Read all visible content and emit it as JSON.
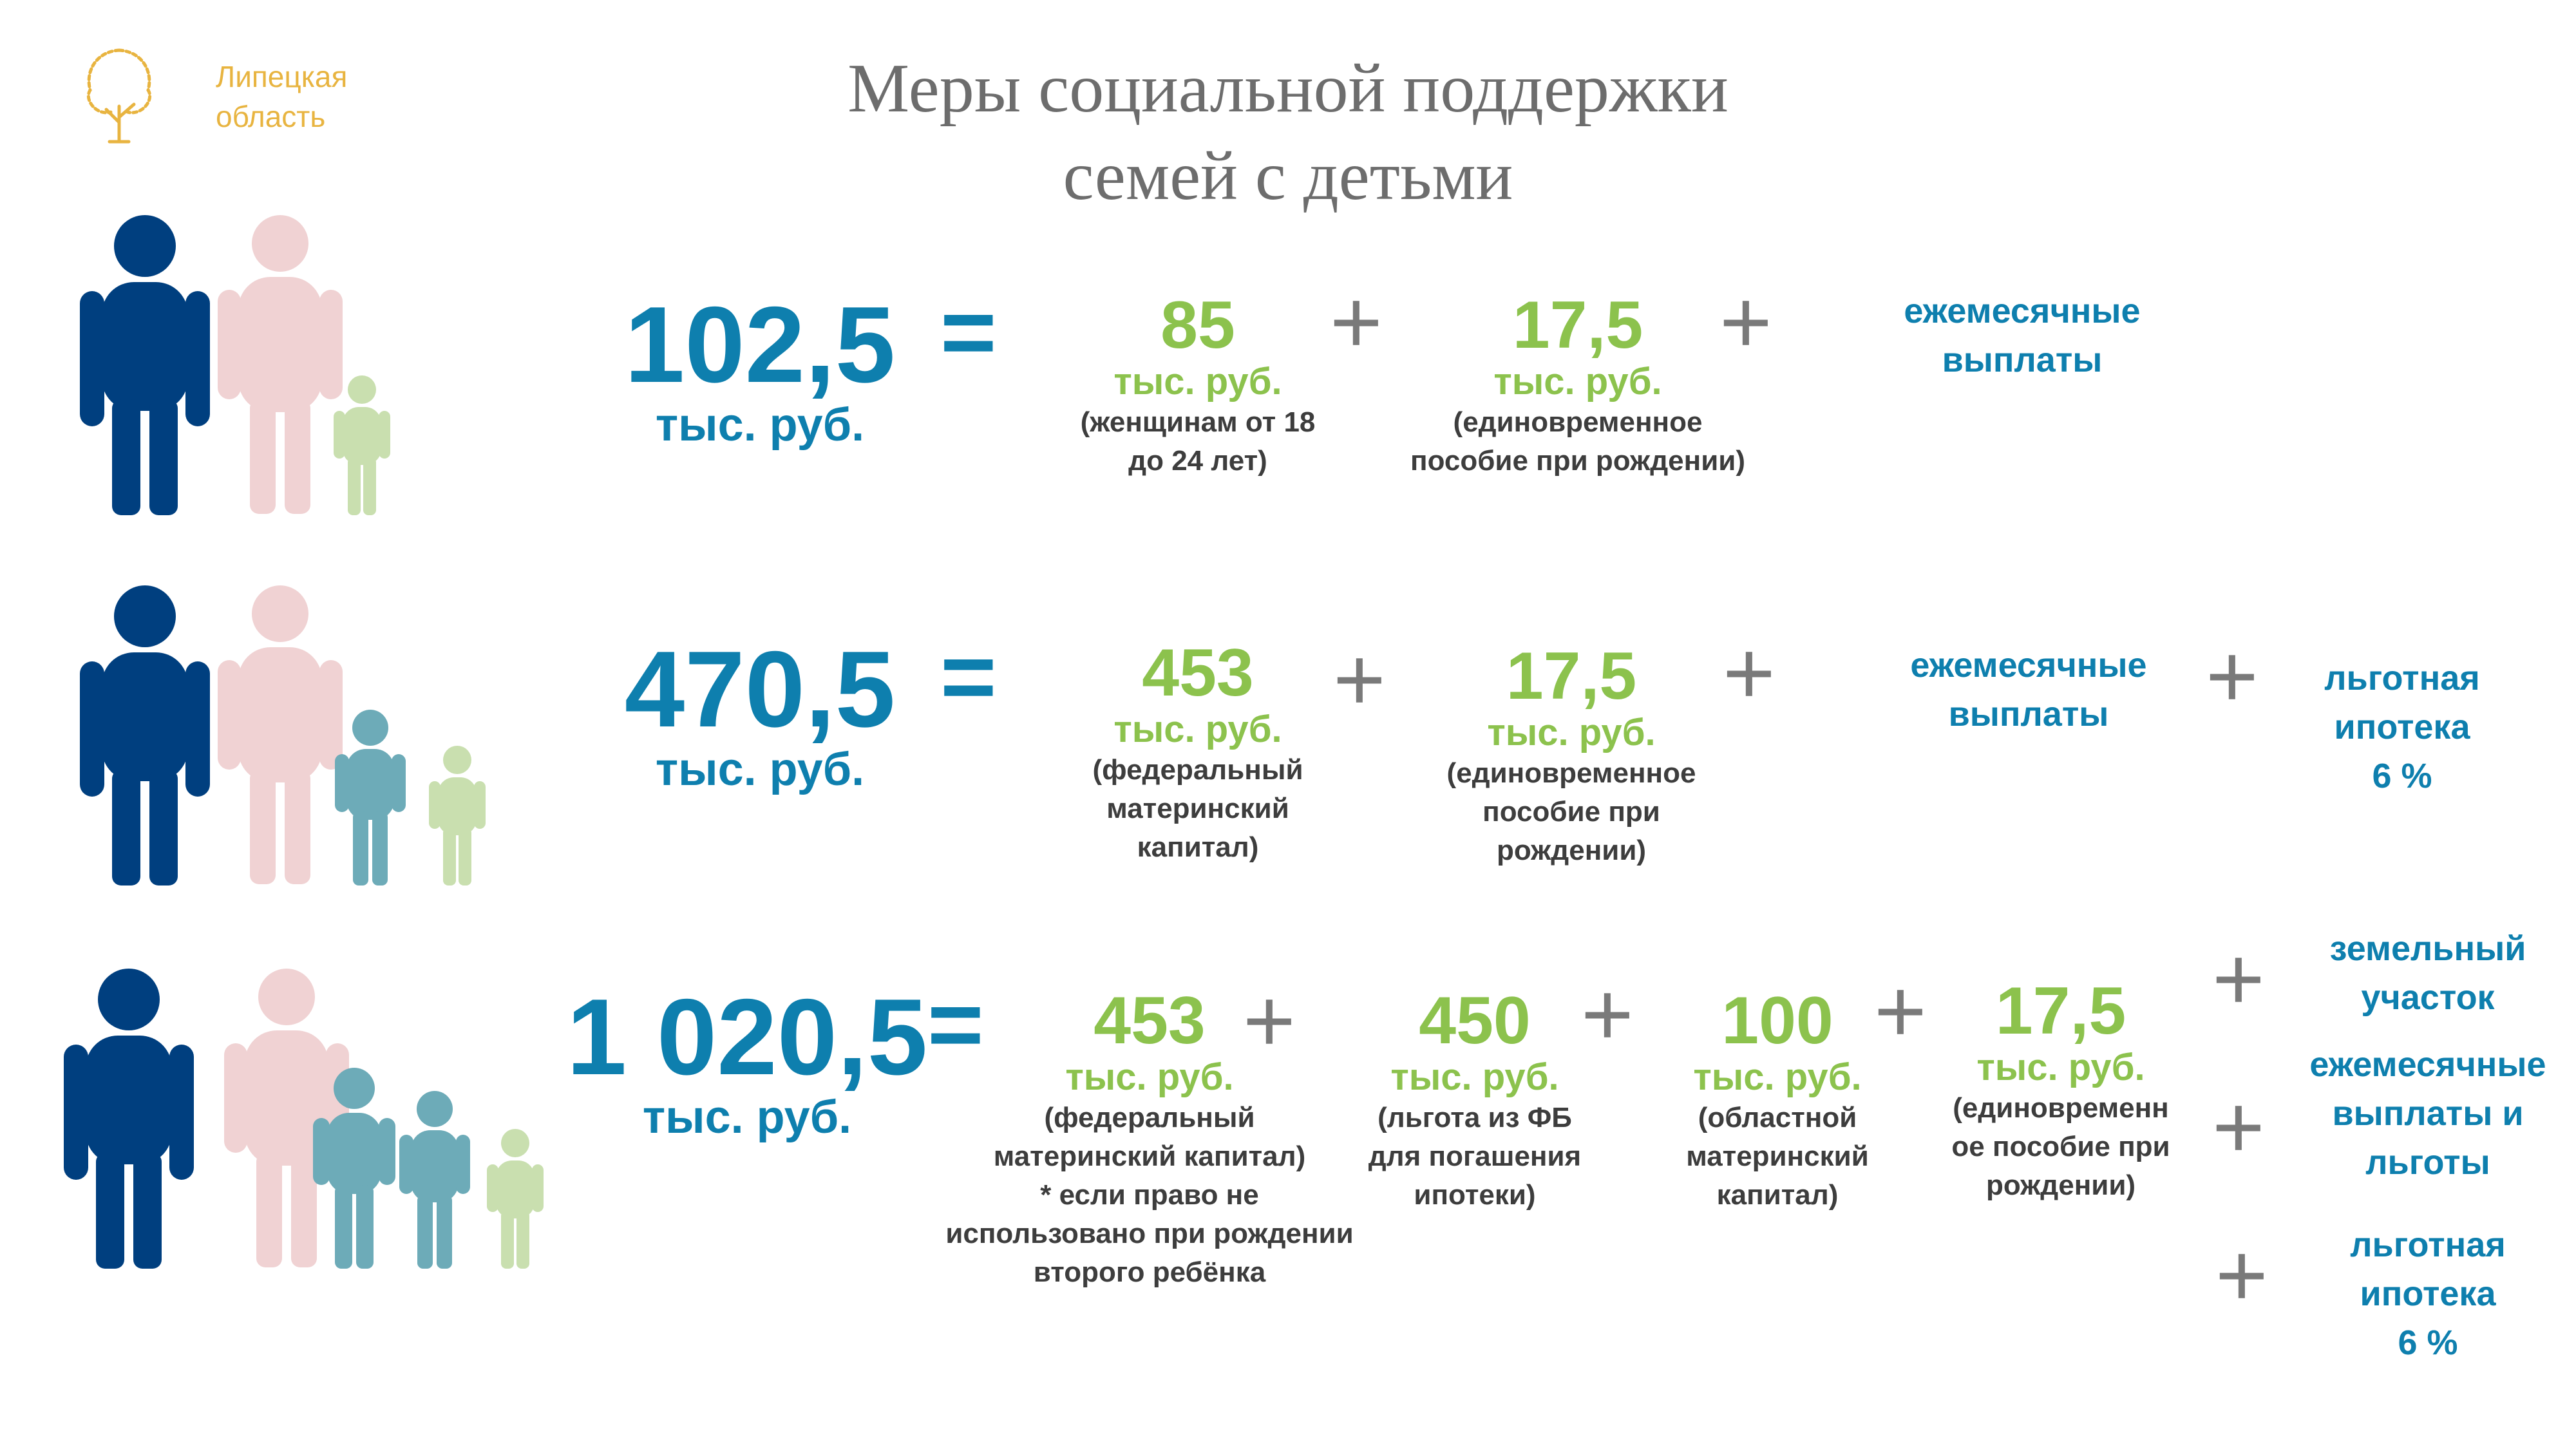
{
  "header": {
    "title_line1": "Меры социальной поддержки",
    "title_line2": "семей с детьми",
    "region_line1": "Липецкая",
    "region_line2": "область"
  },
  "colors": {
    "accent_blue": "#0e7fae",
    "value_green": "#8cc24d",
    "father": "#003f7f",
    "mother": "#f0d2d3",
    "child_teal": "#6dabb8",
    "child_light": "#c9dfaf",
    "logo_gold": "#e8b440"
  },
  "rows": [
    {
      "total": "102,5",
      "total_unit": "тыс. руб.",
      "equals": "=",
      "items": [
        {
          "value": "85",
          "unit": "тыс. руб.",
          "note": "(женщинам от 18\nдо 24 лет)"
        },
        {
          "value": "17,5",
          "unit": "тыс. руб.",
          "note": "(единовременное\nпособие при рождении)"
        }
      ],
      "extras": [
        "ежемесячные\nвыплаты"
      ]
    },
    {
      "total": "470,5",
      "total_unit": "тыс. руб.",
      "equals": "=",
      "items": [
        {
          "value": "453",
          "unit": "тыс. руб.",
          "note": "(федеральный\nматеринский\nкапитал)"
        },
        {
          "value": "17,5",
          "unit": "тыс. руб.",
          "note": "(единовременное\nпособие при\nрождении)"
        }
      ],
      "extras": [
        "ежемесячные\nвыплаты",
        "льготная\nипотека\n6 %"
      ]
    },
    {
      "total": "1 020,5",
      "total_unit": "тыс. руб.",
      "equals": "=",
      "items": [
        {
          "value": "453",
          "unit": "тыс. руб.",
          "note": "(федеральный\nматеринский капитал)\n* если право не\nиспользовано при рождении\nвторого ребёнка"
        },
        {
          "value": "450",
          "unit": "тыс. руб.",
          "note": "(льгота из ФБ\nдля погашения\nипотеки)"
        },
        {
          "value": "100",
          "unit": "тыс. руб.",
          "note": "(областной\nматеринский\nкапитал)"
        },
        {
          "value": "17,5",
          "unit": "тыс. руб.",
          "note": "(единовременн\nое пособие при\nрождении)"
        }
      ],
      "extras": [
        "земельный\nучасток",
        "ежемесячные\nвыплаты и\nльготы",
        "льготная\nипотека\n6 %"
      ]
    }
  ],
  "plus_sign": "+"
}
